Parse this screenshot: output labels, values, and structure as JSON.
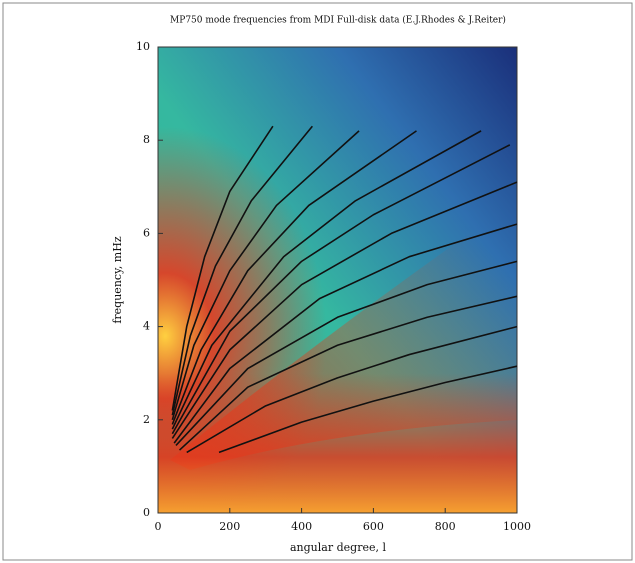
{
  "chart_data": {
    "type": "line",
    "title": "MP750 mode frequencies from MDI Full-disk data (E.J.Rhodes & J.Reiter)",
    "x_label": "angular degree, l",
    "y_label": "frequency, mHz",
    "xlim": [
      0,
      1000
    ],
    "xticks": [
      0,
      200,
      400,
      600,
      800,
      1000
    ],
    "ylim": [
      0,
      10
    ],
    "yticks": [
      0,
      2,
      4,
      6,
      8,
      10
    ],
    "series": [
      {
        "color": "#111111",
        "x": [
          170,
          400,
          600,
          800,
          1000
        ],
        "values": [
          1.3,
          1.95,
          2.4,
          2.8,
          3.15
        ]
      },
      {
        "color": "#111111",
        "x": [
          80,
          300,
          500,
          700,
          1000
        ],
        "values": [
          1.3,
          2.3,
          2.9,
          3.4,
          4.0
        ]
      },
      {
        "color": "#111111",
        "x": [
          60,
          250,
          500,
          750,
          1000
        ],
        "values": [
          1.35,
          2.7,
          3.6,
          4.2,
          4.65
        ]
      },
      {
        "color": "#111111",
        "x": [
          50,
          250,
          500,
          750,
          1000
        ],
        "values": [
          1.45,
          3.1,
          4.2,
          4.9,
          5.4
        ]
      },
      {
        "color": "#111111",
        "x": [
          45,
          200,
          450,
          700,
          1000
        ],
        "values": [
          1.5,
          3.1,
          4.6,
          5.5,
          6.2
        ]
      },
      {
        "color": "#111111",
        "x": [
          40,
          200,
          400,
          650,
          1000
        ],
        "values": [
          1.6,
          3.5,
          4.9,
          6.0,
          7.1
        ]
      },
      {
        "color": "#111111",
        "x": [
          40,
          200,
          400,
          600,
          980
        ],
        "values": [
          1.7,
          3.9,
          5.4,
          6.4,
          7.9
        ]
      },
      {
        "color": "#111111",
        "x": [
          40,
          150,
          350,
          550,
          900
        ],
        "values": [
          1.8,
          3.6,
          5.5,
          6.7,
          8.2
        ]
      },
      {
        "color": "#111111",
        "x": [
          40,
          120,
          250,
          420,
          720
        ],
        "values": [
          1.9,
          3.5,
          5.2,
          6.6,
          8.2
        ]
      },
      {
        "color": "#111111",
        "x": [
          40,
          100,
          200,
          330,
          560
        ],
        "values": [
          2.0,
          3.6,
          5.2,
          6.6,
          8.2
        ]
      },
      {
        "color": "#111111",
        "x": [
          40,
          90,
          160,
          260,
          430
        ],
        "values": [
          2.1,
          3.8,
          5.3,
          6.7,
          8.3
        ]
      },
      {
        "color": "#111111",
        "x": [
          40,
          80,
          130,
          200,
          320
        ],
        "values": [
          2.2,
          4.0,
          5.5,
          6.9,
          8.3
        ]
      }
    ]
  }
}
